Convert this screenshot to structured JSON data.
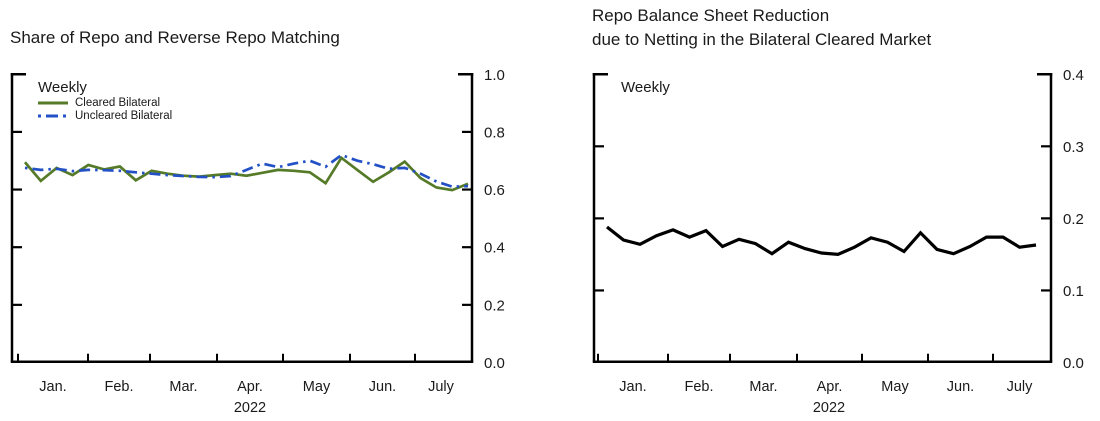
{
  "chart_data": [
    {
      "type": "line",
      "title": "Share of Repo and Reverse Repo Matching",
      "frequency_label": "Weekly",
      "x_tick_labels": [
        "Jan.",
        "Feb.",
        "Mar.",
        "Apr.",
        "May",
        "Jun.",
        "July"
      ],
      "x_year_label": "2022",
      "x_unit": "weekly observations, January through mid-July 2022",
      "y_tick_labels": [
        "0.0",
        "0.2",
        "0.4",
        "0.6",
        "0.8",
        "1.0"
      ],
      "ylim": [
        0.0,
        1.0
      ],
      "grid": false,
      "y_axis_side": "right",
      "legend_position": "top-left",
      "series": [
        {
          "name": "Cleared Bilateral",
          "color": "#557a28",
          "line_style": "solid",
          "values": [
            0.695,
            0.63,
            0.675,
            0.65,
            0.685,
            0.67,
            0.68,
            0.632,
            0.665,
            0.655,
            0.648,
            0.645,
            0.65,
            0.655,
            0.648,
            0.658,
            0.668,
            0.665,
            0.66,
            0.622,
            0.71,
            0.668,
            0.627,
            0.66,
            0.697,
            0.64,
            0.607,
            0.598,
            0.62
          ]
        },
        {
          "name": "Uncleared Bilateral",
          "color": "#2351c5",
          "line_style": "dash-dot",
          "values": [
            0.675,
            0.668,
            0.672,
            0.664,
            0.668,
            0.667,
            0.665,
            0.66,
            0.655,
            0.65,
            0.647,
            0.644,
            0.643,
            0.647,
            0.668,
            0.69,
            0.678,
            0.69,
            0.7,
            0.679,
            0.72,
            0.7,
            0.688,
            0.672,
            0.675,
            0.655,
            0.628,
            0.61,
            0.612
          ]
        }
      ]
    },
    {
      "type": "line",
      "title": "Repo Balance Sheet Reduction due to Netting in the Bilateral Cleared Market",
      "title_line1": "Repo Balance Sheet Reduction",
      "title_line2": "due to Netting in the Bilateral Cleared Market",
      "frequency_label": "Weekly",
      "x_tick_labels": [
        "Jan.",
        "Feb.",
        "Mar.",
        "Apr.",
        "May",
        "Jun.",
        "July"
      ],
      "x_year_label": "2022",
      "x_unit": "weekly observations, January through mid-July 2022",
      "y_tick_labels": [
        "0.0",
        "0.1",
        "0.2",
        "0.3",
        "0.4"
      ],
      "ylim": [
        0.0,
        0.4
      ],
      "grid": false,
      "y_axis_side": "right",
      "legend_position": "none",
      "series": [
        {
          "name": "",
          "color": "#000000",
          "line_style": "solid",
          "values": [
            0.188,
            0.17,
            0.164,
            0.176,
            0.184,
            0.174,
            0.183,
            0.161,
            0.171,
            0.165,
            0.151,
            0.167,
            0.158,
            0.152,
            0.15,
            0.16,
            0.173,
            0.167,
            0.154,
            0.18,
            0.157,
            0.151,
            0.161,
            0.174,
            0.174,
            0.16,
            0.163
          ]
        }
      ]
    }
  ]
}
